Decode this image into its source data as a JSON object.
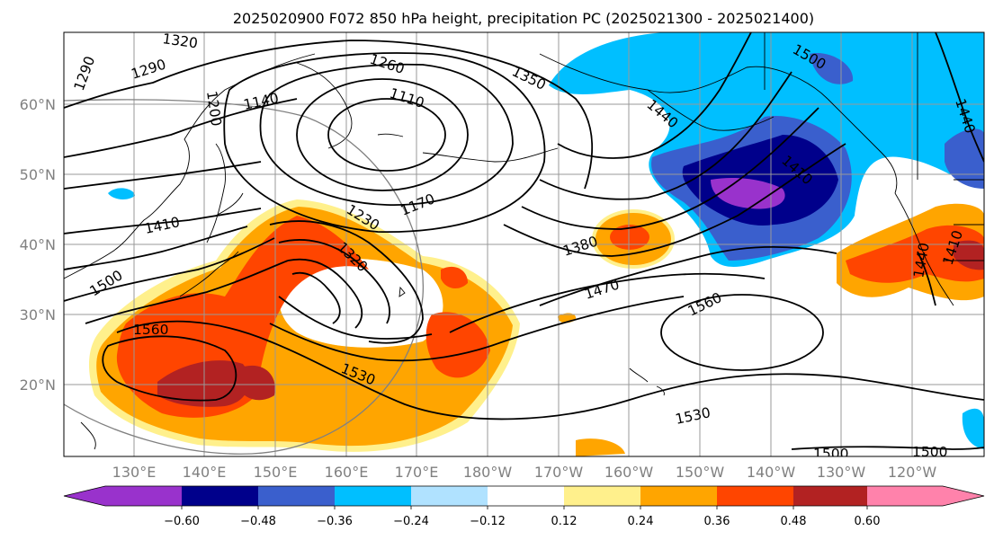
{
  "title": "2025020900 F072 850 hPa height, precipitation PC (2025021300 - 2025021400)",
  "lat_labels": [
    "60°N",
    "50°N",
    "40°N",
    "30°N",
    "20°N"
  ],
  "lon_labels": [
    "130°E",
    "140°E",
    "150°E",
    "160°E",
    "170°E",
    "180°W",
    "170°W",
    "160°W",
    "150°W",
    "140°W",
    "130°W",
    "120°W"
  ],
  "contour_labels": [
    {
      "id": "c1",
      "text": "1320"
    },
    {
      "id": "c2",
      "text": "1290"
    },
    {
      "id": "c3",
      "text": "1290"
    },
    {
      "id": "c4",
      "text": "1260"
    },
    {
      "id": "c5",
      "text": "1350"
    },
    {
      "id": "c6",
      "text": "1200"
    },
    {
      "id": "c7",
      "text": "1140"
    },
    {
      "id": "c8",
      "text": "1110"
    },
    {
      "id": "c9",
      "text": "1170"
    },
    {
      "id": "c10",
      "text": "1230"
    },
    {
      "id": "c11",
      "text": "1410"
    },
    {
      "id": "c12",
      "text": "1320"
    },
    {
      "id": "c13",
      "text": "1500"
    },
    {
      "id": "c14",
      "text": "1560"
    },
    {
      "id": "c15",
      "text": "1530"
    },
    {
      "id": "c16",
      "text": "1380"
    },
    {
      "id": "c17",
      "text": "1470"
    },
    {
      "id": "c18",
      "text": "1560"
    },
    {
      "id": "c19",
      "text": "1530"
    },
    {
      "id": "c20",
      "text": "1440"
    },
    {
      "id": "c21",
      "text": "1410"
    },
    {
      "id": "c22",
      "text": "1500"
    },
    {
      "id": "c23",
      "text": "1440"
    },
    {
      "id": "c24",
      "text": "1440"
    },
    {
      "id": "c25",
      "text": "1410"
    },
    {
      "id": "c26",
      "text": "1500"
    },
    {
      "id": "c27",
      "text": "1500"
    }
  ],
  "colorbar": {
    "colors": [
      "#9932cc",
      "#00008b",
      "#3a5fcd",
      "#00bfff",
      "#b0e2ff",
      "#ffffff",
      "#fff08c",
      "#ffa500",
      "#ff4500",
      "#b22222",
      "#ff82ab"
    ],
    "tick_labels": [
      "−0.60",
      "−0.48",
      "−0.36",
      "−0.24",
      "−0.12",
      "0.12",
      "0.24",
      "0.36",
      "0.48",
      "0.60"
    ]
  }
}
